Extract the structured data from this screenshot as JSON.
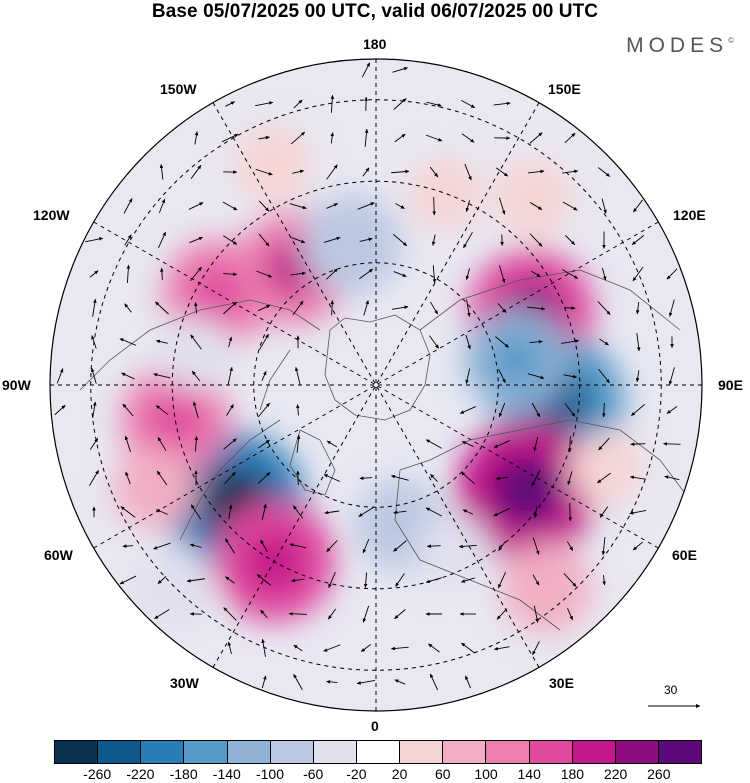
{
  "title": "Base 05/07/2025 00 UTC, valid 06/07/2025 00 UTC",
  "logo": "MODES",
  "logo_mark": "©",
  "longitude_labels": {
    "top": "180",
    "top_left": "150W",
    "top_right": "150E",
    "upper_left": "120W",
    "upper_right": "120E",
    "left": "90W",
    "right": "90E",
    "lower_left": "60W",
    "lower_right": "60E",
    "bottom_left": "30W",
    "bottom_right": "30E",
    "bottom": "0"
  },
  "reference_vector": "30",
  "colorbar": {
    "colors": [
      "#08304f",
      "#0c5a8c",
      "#2a7db8",
      "#5499c8",
      "#8fb2d6",
      "#bcc8e2",
      "#e0e0ef",
      "#ffffff",
      "#f6d4d4",
      "#f2aec2",
      "#ec7fb0",
      "#e0499e",
      "#c4178a",
      "#8e0b80",
      "#5c0878"
    ],
    "ticks": [
      "-260",
      "-220",
      "-180",
      "-140",
      "-100",
      "-60",
      "-20",
      "20",
      "60",
      "100",
      "140",
      "180",
      "220",
      "260"
    ]
  },
  "anomalies": [
    {
      "lon": 115,
      "lat": 48,
      "value": 160
    },
    {
      "lon": 85,
      "lat": 45,
      "value": -170
    },
    {
      "lon": 100,
      "lat": 55,
      "value": -110
    },
    {
      "lon": 55,
      "lat": 45,
      "value": 190
    },
    {
      "lon": 40,
      "lat": 25,
      "value": 80
    },
    {
      "lon": -50,
      "lat": 45,
      "value": -190
    },
    {
      "lon": -30,
      "lat": 40,
      "value": 150
    },
    {
      "lon": -45,
      "lat": 20,
      "value": -60
    },
    {
      "lon": -80,
      "lat": 40,
      "value": 120
    },
    {
      "lon": -120,
      "lat": 45,
      "value": 120
    },
    {
      "lon": -145,
      "lat": 55,
      "value": 130
    },
    {
      "lon": -170,
      "lat": 55,
      "value": -100
    },
    {
      "lon": -155,
      "lat": 30,
      "value": 50
    },
    {
      "lon": 10,
      "lat": 55,
      "value": -80
    },
    {
      "lon": 25,
      "lat": 45,
      "value": -40
    },
    {
      "lon": 140,
      "lat": 30,
      "value": 50
    },
    {
      "lon": 160,
      "lat": 40,
      "value": 40
    },
    {
      "lon": -100,
      "lat": 45,
      "value": -40
    },
    {
      "lon": -65,
      "lat": 30,
      "value": 60
    },
    {
      "lon": 70,
      "lat": 30,
      "value": 40
    }
  ]
}
